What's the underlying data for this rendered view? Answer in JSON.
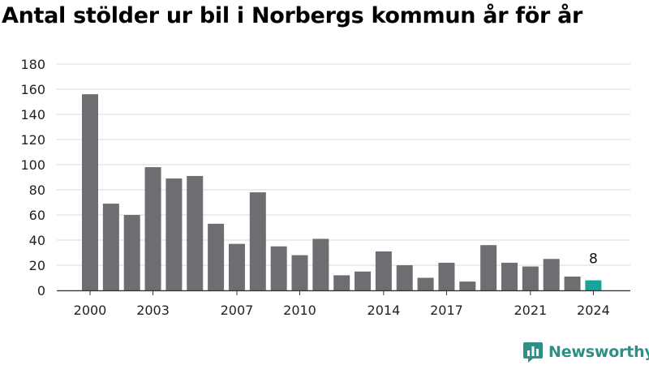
{
  "chart_data": {
    "type": "bar",
    "title": "Antal stölder ur bil i Norbergs kommun år för år",
    "xlabel": "",
    "ylabel": "",
    "ylim": [
      0,
      180
    ],
    "yticks": [
      0,
      20,
      40,
      60,
      80,
      100,
      120,
      140,
      160,
      180
    ],
    "xtick_labels": [
      "2000",
      "2003",
      "2007",
      "2010",
      "2014",
      "2017",
      "2021",
      "2024"
    ],
    "categories": [
      "2000",
      "2001",
      "2002",
      "2003",
      "2004",
      "2005",
      "2006",
      "2007",
      "2008",
      "2009",
      "2010",
      "2011",
      "2012",
      "2013",
      "2014",
      "2015",
      "2016",
      "2017",
      "2018",
      "2019",
      "2020",
      "2021",
      "2022",
      "2023",
      "2024"
    ],
    "values": [
      156,
      69,
      60,
      98,
      89,
      91,
      53,
      37,
      78,
      35,
      28,
      41,
      12,
      15,
      31,
      20,
      10,
      22,
      7,
      36,
      22,
      19,
      25,
      11,
      8
    ],
    "highlight": {
      "category": "2024",
      "label": "8"
    },
    "grid": true,
    "colors": {
      "bar": "#6e6d72",
      "highlight": "#1aa39a",
      "grid": "#d9d9d9"
    }
  },
  "brand": {
    "name": "Newsworthy",
    "icon": "newsworthy-logo-icon",
    "color": "#2d8f86"
  }
}
